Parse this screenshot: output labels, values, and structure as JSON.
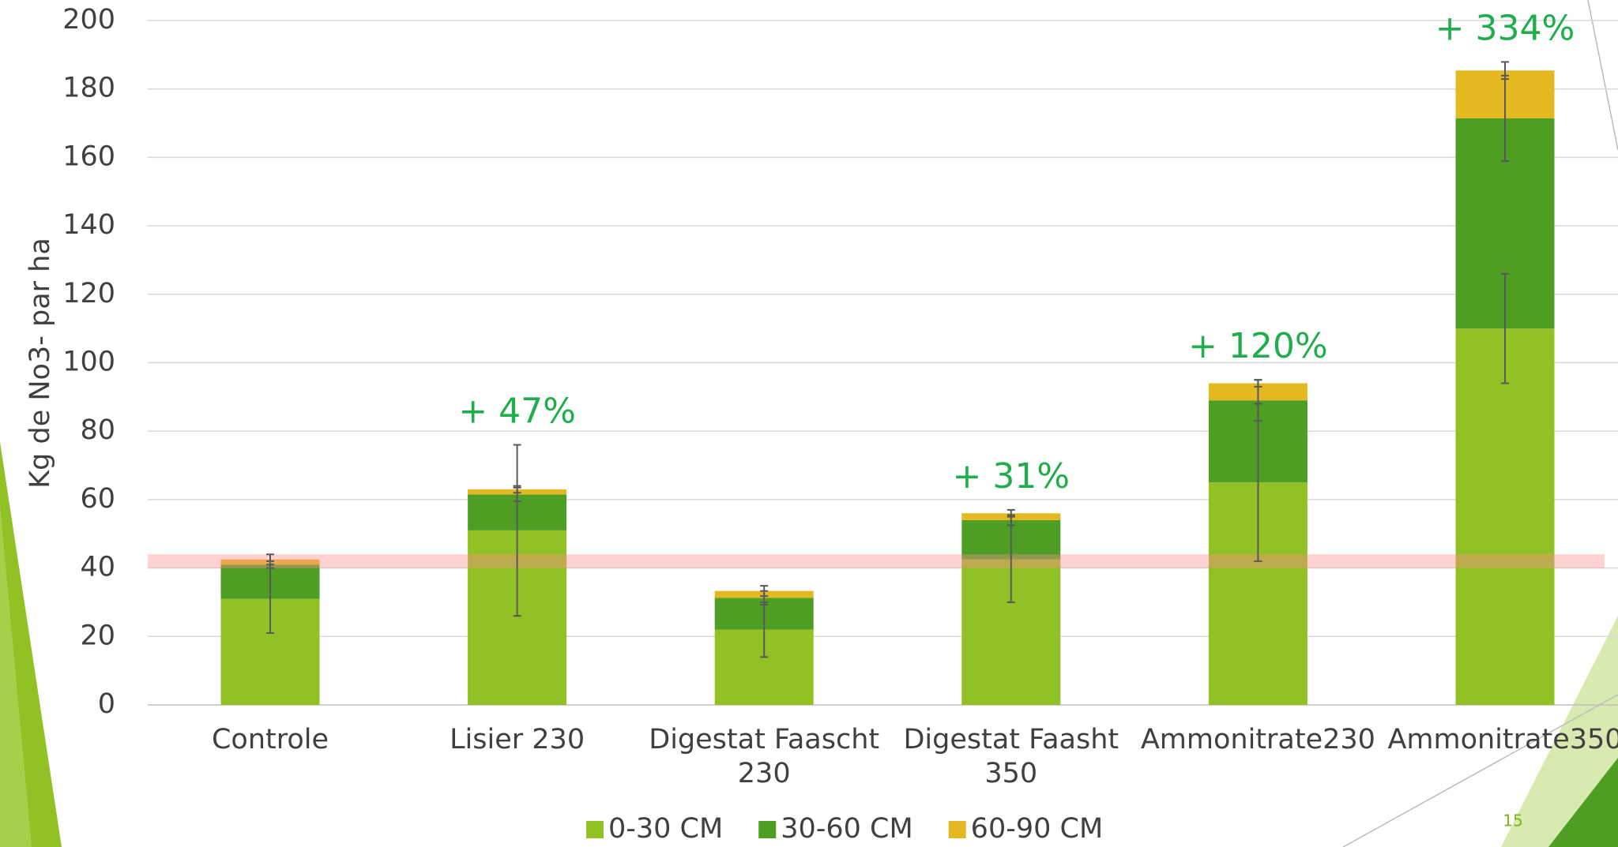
{
  "chart_data": {
    "type": "stacked_bar",
    "ylabel": "Kg de No3- par ha",
    "categories": [
      [
        "Controle"
      ],
      [
        "Lisier 230"
      ],
      [
        "Digestat Faascht",
        "230"
      ],
      [
        "Digestat Faasht",
        "350"
      ],
      [
        "Ammonitrate230"
      ],
      [
        "Ammonitrate350"
      ]
    ],
    "series": [
      {
        "name": "0-30 CM",
        "color": "#92c125",
        "values": [
          31,
          51,
          22,
          42.5,
          65,
          110
        ],
        "errors": [
          10,
          25,
          8,
          12.5,
          23,
          16
        ]
      },
      {
        "name": "30-60 CM",
        "color": "#4e9e23",
        "values": [
          10,
          10.5,
          9.3,
          11.5,
          24,
          61.4
        ],
        "errors": [
          1,
          2,
          2,
          1.5,
          6,
          12.5
        ]
      },
      {
        "name": "60-90 CM",
        "color": "#e3b820",
        "values": [
          1.5,
          1.5,
          2,
          2,
          5,
          14
        ],
        "errors": [
          1.5,
          1,
          1.5,
          1,
          1,
          2.5
        ]
      }
    ],
    "annotations": [
      null,
      "+ 47%",
      null,
      "+ 31%",
      "+ 120%",
      "+ 334%"
    ],
    "reference_band": [
      40,
      44
    ],
    "ylim": [
      0,
      200
    ],
    "yticks": [
      0,
      20,
      40,
      60,
      80,
      100,
      120,
      140,
      160,
      180,
      200
    ],
    "grid": true,
    "legend": "bottom",
    "page_number": "15"
  }
}
